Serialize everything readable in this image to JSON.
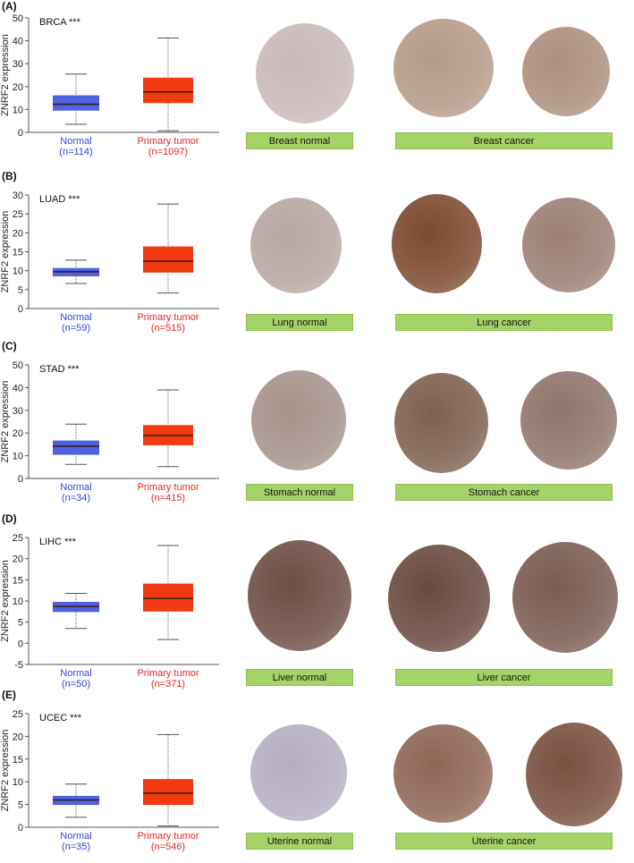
{
  "figure": {
    "y_axis_label": "ZNRF2 expression",
    "panels": [
      {
        "letter": "(A)",
        "cancer": "BRCA ***",
        "normal_label": "Normal",
        "normal_n": "(n=114)",
        "tumor_label": "Primary tumor",
        "tumor_n": "(n=1097)",
        "tissue_normal": "Breast normal",
        "tissue_cancer": "Breast cancer"
      },
      {
        "letter": "(B)",
        "cancer": "LUAD ***",
        "normal_label": "Normal",
        "normal_n": "(n=59)",
        "tumor_label": "Primary tumor",
        "tumor_n": "(n=515)",
        "tissue_normal": "Lung normal",
        "tissue_cancer": "Lung cancer"
      },
      {
        "letter": "(C)",
        "cancer": "STAD ***",
        "normal_label": "Normal",
        "normal_n": "(n=34)",
        "tumor_label": "Primary tumor",
        "tumor_n": "(n=415)",
        "tissue_normal": "Stomach normal",
        "tissue_cancer": "Stomach cancer"
      },
      {
        "letter": "(D)",
        "cancer": "LIHC ***",
        "normal_label": "Normal",
        "normal_n": "(n=50)",
        "tumor_label": "Primary tumor",
        "tumor_n": "(n=371)",
        "tissue_normal": "Liver normal",
        "tissue_cancer": "Liver cancer"
      },
      {
        "letter": "(E)",
        "cancer": "UCEC ***",
        "normal_label": "Normal",
        "normal_n": "(n=35)",
        "tumor_label": "Primary tumor",
        "tumor_n": "(n=546)",
        "tissue_normal": "Uterine normal",
        "tissue_cancer": "Uterine cancer"
      }
    ],
    "colors": {
      "normal": "#4f63e0",
      "tumor": "#f23a10",
      "tag": "#a6d367"
    }
  },
  "chart_data": [
    {
      "type": "box",
      "title": "BRCA ***",
      "ylabel": "ZNRF2 expression",
      "ylim": [
        0,
        50
      ],
      "yticks": [
        0,
        10,
        20,
        30,
        40,
        50
      ],
      "categories": [
        "Normal (n=114)",
        "Primary tumor (n=1097)"
      ],
      "series": [
        {
          "name": "Normal",
          "min": 3.5,
          "q1": 9.5,
          "median": 12.3,
          "q3": 16.2,
          "max": 25.5
        },
        {
          "name": "Primary tumor",
          "min": 0.7,
          "q1": 12.8,
          "median": 17.7,
          "q3": 23.9,
          "max": 41.2
        }
      ]
    },
    {
      "type": "box",
      "title": "LUAD ***",
      "ylabel": "ZNRF2 expression",
      "ylim": [
        0,
        30
      ],
      "yticks": [
        0,
        5,
        10,
        15,
        20,
        25,
        30
      ],
      "categories": [
        "Normal (n=59)",
        "Primary tumor (n=515)"
      ],
      "series": [
        {
          "name": "Normal",
          "min": 6.6,
          "q1": 8.5,
          "median": 9.7,
          "q3": 10.7,
          "max": 12.8
        },
        {
          "name": "Primary tumor",
          "min": 4.1,
          "q1": 9.5,
          "median": 12.5,
          "q3": 16.4,
          "max": 27.6
        }
      ]
    },
    {
      "type": "box",
      "title": "STAD ***",
      "ylabel": "ZNRF2 expression",
      "ylim": [
        0,
        50
      ],
      "yticks": [
        0,
        10,
        20,
        30,
        40,
        50
      ],
      "categories": [
        "Normal (n=34)",
        "Primary tumor (n=415)"
      ],
      "series": [
        {
          "name": "Normal",
          "min": 6.2,
          "q1": 10.4,
          "median": 14.2,
          "q3": 16.7,
          "max": 23.9
        },
        {
          "name": "Primary tumor",
          "min": 5.2,
          "q1": 14.6,
          "median": 18.9,
          "q3": 23.5,
          "max": 39.0
        }
      ]
    },
    {
      "type": "box",
      "title": "LIHC ***",
      "ylabel": "ZNRF2 expression",
      "ylim": [
        -5,
        25
      ],
      "yticks": [
        -5,
        0,
        5,
        10,
        15,
        20,
        25
      ],
      "categories": [
        "Normal (n=50)",
        "Primary tumor (n=371)"
      ],
      "series": [
        {
          "name": "Normal",
          "min": 3.5,
          "q1": 7.4,
          "median": 8.7,
          "q3": 9.8,
          "max": 11.8
        },
        {
          "name": "Primary tumor",
          "min": 0.9,
          "q1": 7.5,
          "median": 10.6,
          "q3": 14.1,
          "max": 23.1
        }
      ]
    },
    {
      "type": "box",
      "title": "UCEC ***",
      "ylabel": "ZNRF2 expression",
      "ylim": [
        0,
        25
      ],
      "yticks": [
        0,
        5,
        10,
        15,
        20,
        25
      ],
      "categories": [
        "Normal (n=35)",
        "Primary tumor (n=546)"
      ],
      "series": [
        {
          "name": "Normal",
          "min": 2.2,
          "q1": 4.9,
          "median": 6.0,
          "q3": 6.9,
          "max": 9.5
        },
        {
          "name": "Primary tumor",
          "min": 0.3,
          "q1": 4.9,
          "median": 7.5,
          "q3": 10.6,
          "max": 20.4
        }
      ]
    }
  ]
}
